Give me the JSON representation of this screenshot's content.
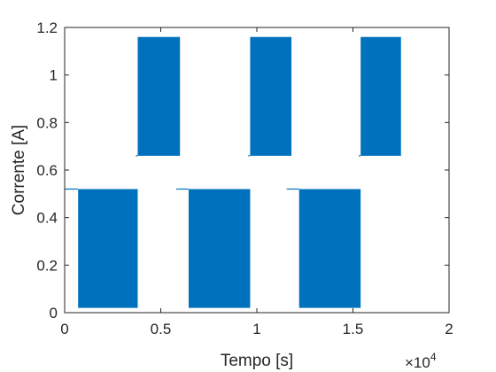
{
  "chart_data": {
    "type": "area",
    "xlabel": "Tempo [s]",
    "ylabel": "Corrente [A]",
    "x_multiplier_label": {
      "base": "×10",
      "exponent": "4"
    },
    "xlim": [
      0,
      2
    ],
    "ylim": [
      0,
      1.2
    ],
    "x_unit_scale": 10000,
    "xticks": [
      0,
      0.5,
      1,
      1.5,
      2
    ],
    "xtick_labels": [
      "0",
      "0.5",
      "1",
      "1.5",
      "2"
    ],
    "yticks": [
      0,
      0.2,
      0.4,
      0.6,
      0.8,
      1,
      1.2
    ],
    "ytick_labels": [
      "0",
      "0.2",
      "0.4",
      "0.6",
      "0.8",
      "1",
      "1.2"
    ],
    "grid": false,
    "color": "#0072BD",
    "baseline_segments": [
      {
        "x_start": 0,
        "x_end": 0.07,
        "y": 0.52
      },
      {
        "x_start": 0.37,
        "x_end": 0.38,
        "y": 0.66
      },
      {
        "x_start": 0.58,
        "x_end": 0.645,
        "y": 0.52
      },
      {
        "x_start": 0.955,
        "x_end": 0.965,
        "y": 0.66
      },
      {
        "x_start": 1.155,
        "x_end": 1.22,
        "y": 0.52
      },
      {
        "x_start": 1.53,
        "x_end": 1.54,
        "y": 0.66
      }
    ],
    "oscillation_bands": [
      {
        "x_start": 0.07,
        "x_end": 0.38,
        "y_min": 0.02,
        "y_max": 0.52
      },
      {
        "x_start": 0.38,
        "x_end": 0.6,
        "y_min": 0.66,
        "y_max": 1.16
      },
      {
        "x_start": 0.645,
        "x_end": 0.965,
        "y_min": 0.02,
        "y_max": 0.52
      },
      {
        "x_start": 0.965,
        "x_end": 1.18,
        "y_min": 0.66,
        "y_max": 1.16
      },
      {
        "x_start": 1.22,
        "x_end": 1.54,
        "y_min": 0.02,
        "y_max": 0.52
      },
      {
        "x_start": 1.54,
        "x_end": 1.75,
        "y_min": 0.66,
        "y_max": 1.16
      }
    ]
  }
}
